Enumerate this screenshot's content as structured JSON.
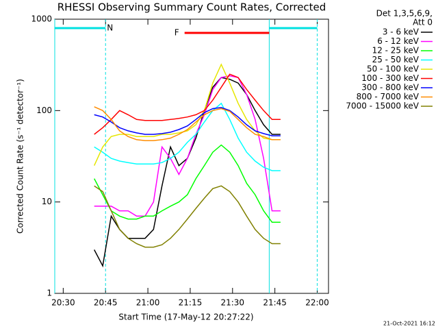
{
  "chart_data": {
    "type": "line",
    "title": "RHESSI Observing Summary Count Rates, Corrected",
    "xlabel": "Start Time (17-May-12 20:27:22)",
    "ylabel": "Corrected Count Rate (s⁻¹ detector⁻¹)",
    "legend_title": [
      "Det 1,3,5,6,9,",
      "Att 0"
    ],
    "timestamp": "21-Oct-2021 16:12",
    "log_y": true,
    "legend": "right",
    "xlim": [
      "20:27",
      "22:04"
    ],
    "xticks": [
      "20:30",
      "20:45",
      "21:00",
      "21:15",
      "21:30",
      "21:45",
      "22:00"
    ],
    "ylim": [
      1,
      1000
    ],
    "yticks": [
      1,
      10,
      100,
      1000
    ],
    "night_intervals": [
      {
        "start": "20:27",
        "end": "20:45",
        "label": "N",
        "color": "#00e0e0"
      },
      {
        "start": "21:43",
        "end": "22:00",
        "color": "#00e0e0"
      }
    ],
    "flare_interval": {
      "start": "21:13",
      "end": "21:43",
      "label": "F",
      "color": "#ff0000"
    },
    "x": [
      "20:41",
      "20:44",
      "20:47",
      "20:50",
      "20:53",
      "20:56",
      "20:59",
      "21:02",
      "21:05",
      "21:08",
      "21:11",
      "21:14",
      "21:17",
      "21:20",
      "21:23",
      "21:26",
      "21:29",
      "21:32",
      "21:35",
      "21:38",
      "21:41",
      "21:44",
      "21:47"
    ],
    "series": [
      {
        "name": "3 - 6 keV",
        "color": "#000000",
        "values": [
          3,
          2,
          7,
          5,
          4,
          4,
          4,
          5,
          15,
          40,
          25,
          30,
          50,
          100,
          180,
          230,
          220,
          200,
          150,
          100,
          70,
          55,
          55
        ]
      },
      {
        "name": "6 - 12 keV",
        "color": "#ff00ff",
        "values": [
          9,
          9,
          9,
          8,
          8,
          7,
          7,
          10,
          40,
          30,
          20,
          30,
          55,
          90,
          170,
          230,
          240,
          230,
          150,
          80,
          30,
          8,
          8
        ]
      },
      {
        "name": "12 - 25 keV",
        "color": "#00ff00",
        "values": [
          18,
          12,
          8,
          7,
          6.5,
          6.5,
          7,
          7,
          8,
          9,
          10,
          12,
          18,
          25,
          35,
          42,
          35,
          25,
          16,
          12,
          8,
          6,
          6
        ]
      },
      {
        "name": "25 - 50 keV",
        "color": "#00ffff",
        "values": [
          40,
          35,
          30,
          28,
          27,
          26,
          26,
          26,
          27,
          30,
          35,
          45,
          55,
          75,
          100,
          120,
          80,
          50,
          35,
          28,
          24,
          22,
          22
        ]
      },
      {
        "name": "50 - 100 keV",
        "color": "#e6e600",
        "values": [
          25,
          40,
          52,
          55,
          55,
          52,
          52,
          52,
          55,
          55,
          57,
          60,
          70,
          100,
          200,
          320,
          200,
          120,
          80,
          60,
          50,
          48,
          48
        ]
      },
      {
        "name": "100 - 300 keV",
        "color": "#ff0000",
        "values": [
          55,
          65,
          80,
          100,
          90,
          80,
          78,
          78,
          78,
          80,
          82,
          85,
          90,
          100,
          130,
          180,
          250,
          230,
          170,
          130,
          100,
          80,
          80
        ]
      },
      {
        "name": "300 - 800 keV",
        "color": "#0000ff",
        "values": [
          90,
          85,
          75,
          65,
          60,
          57,
          55,
          55,
          56,
          58,
          62,
          68,
          80,
          95,
          105,
          108,
          100,
          85,
          70,
          60,
          56,
          53,
          53
        ]
      },
      {
        "name": "800 - 7000 keV",
        "color": "#ff8c00",
        "values": [
          110,
          100,
          80,
          60,
          52,
          48,
          47,
          47,
          48,
          50,
          55,
          62,
          75,
          90,
          100,
          105,
          98,
          80,
          65,
          55,
          52,
          48,
          48
        ]
      },
      {
        "name": "7000 - 15000 keV",
        "color": "#808000",
        "values": [
          15,
          13,
          8,
          5,
          4,
          3.5,
          3.2,
          3.2,
          3.4,
          4,
          5,
          6.5,
          8.5,
          11,
          14,
          15,
          13,
          10,
          7,
          5,
          4,
          3.5,
          3.5
        ]
      }
    ]
  }
}
